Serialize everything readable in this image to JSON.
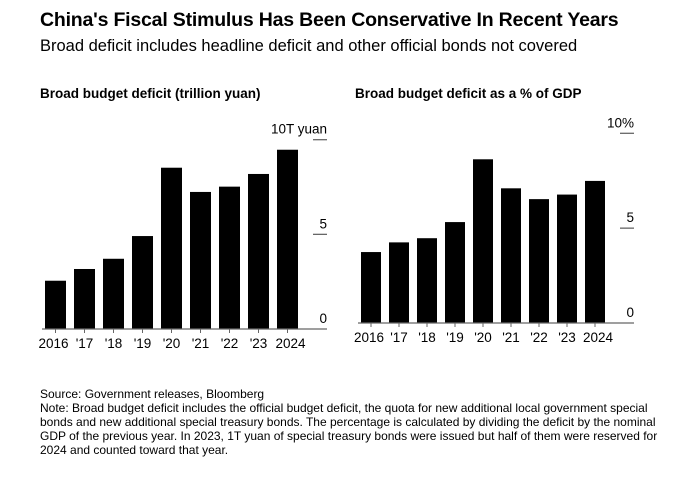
{
  "title": "China's Fiscal Stimulus Has Been Conservative In Recent Years",
  "subtitle": "Broad deficit includes headline deficit and other official bonds not covered",
  "source": "Source: Government releases, Bloomberg",
  "note": "Note: Broad budget deficit includes the official budget deficit, the quota for new additional local government special bonds and new additional special treasury bonds. The percentage is calculated by dividing the deficit by the nominal GDP of the previous year. In 2023, 1T yuan of special treasury bonds were issued but half of them were reserved for 2024 and counted toward that year.",
  "chart_data": [
    {
      "type": "bar",
      "title": "Broad budget deficit (trillion yuan)",
      "categories": [
        "2016",
        "'17",
        "'18",
        "'19",
        "'20",
        "'21",
        "'22",
        "'23",
        "2024"
      ],
      "values": [
        2.55,
        3.17,
        3.71,
        4.91,
        8.52,
        7.24,
        7.52,
        8.19,
        9.47
      ],
      "ylim": [
        0,
        10
      ],
      "yticks": [
        0,
        5,
        10
      ],
      "ytick_labels": [
        "0",
        "5",
        "10T yuan"
      ],
      "color": "#000000"
    },
    {
      "type": "bar",
      "title": "Broad budget deficit as a % of GDP",
      "categories": [
        "2016",
        "'17",
        "'18",
        "'19",
        "'20",
        "'21",
        "'22",
        "'23",
        "2024"
      ],
      "values": [
        3.74,
        4.25,
        4.47,
        5.32,
        8.63,
        7.1,
        6.53,
        6.77,
        7.49
      ],
      "ylim": [
        0,
        10
      ],
      "yticks": [
        0,
        5,
        10
      ],
      "ytick_labels": [
        "0",
        "5",
        "10%"
      ],
      "color": "#000000"
    }
  ]
}
